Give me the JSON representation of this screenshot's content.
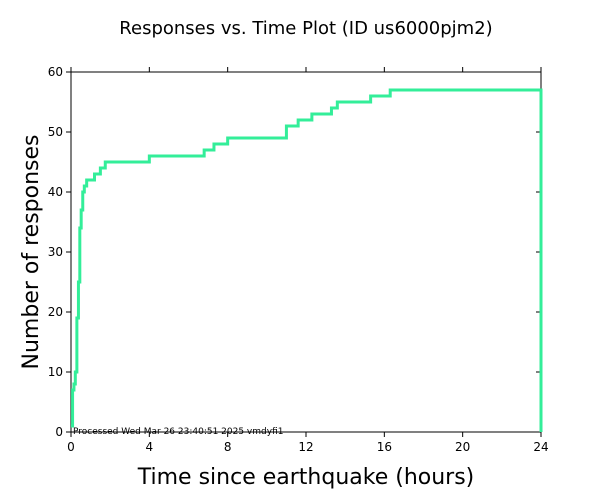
{
  "chart_data": {
    "type": "line",
    "title": "Responses vs. Time Plot (ID us6000pjm2)",
    "xlabel": "Time since earthquake (hours)",
    "ylabel": "Number of responses",
    "xlim": [
      0,
      24
    ],
    "ylim": [
      0,
      60
    ],
    "x_ticks": [
      0,
      4,
      8,
      12,
      16,
      20,
      24
    ],
    "y_ticks": [
      0,
      10,
      20,
      30,
      40,
      50,
      60
    ],
    "grid": false,
    "step": true,
    "line_color": "#33ee99",
    "annotation": "Processed Wed Mar 26 23:40:51 2025 vmdyfi1",
    "series": [
      {
        "x": [
          0.0,
          0.08,
          0.15,
          0.22,
          0.3,
          0.38,
          0.45,
          0.52,
          0.6,
          0.68,
          0.8,
          1.0,
          1.2,
          1.5,
          1.75,
          4.0,
          6.8,
          7.3,
          8.0,
          11.0,
          11.3,
          11.6,
          12.3,
          13.3,
          13.6,
          15.3,
          16.3,
          24.0,
          24.0
        ],
        "y": [
          1,
          7,
          8,
          10,
          19,
          25,
          34,
          37,
          40,
          41,
          42,
          42,
          43,
          44,
          45,
          46,
          47,
          48,
          49,
          51,
          51,
          52,
          53,
          54,
          55,
          56,
          57,
          57,
          0
        ]
      }
    ]
  }
}
